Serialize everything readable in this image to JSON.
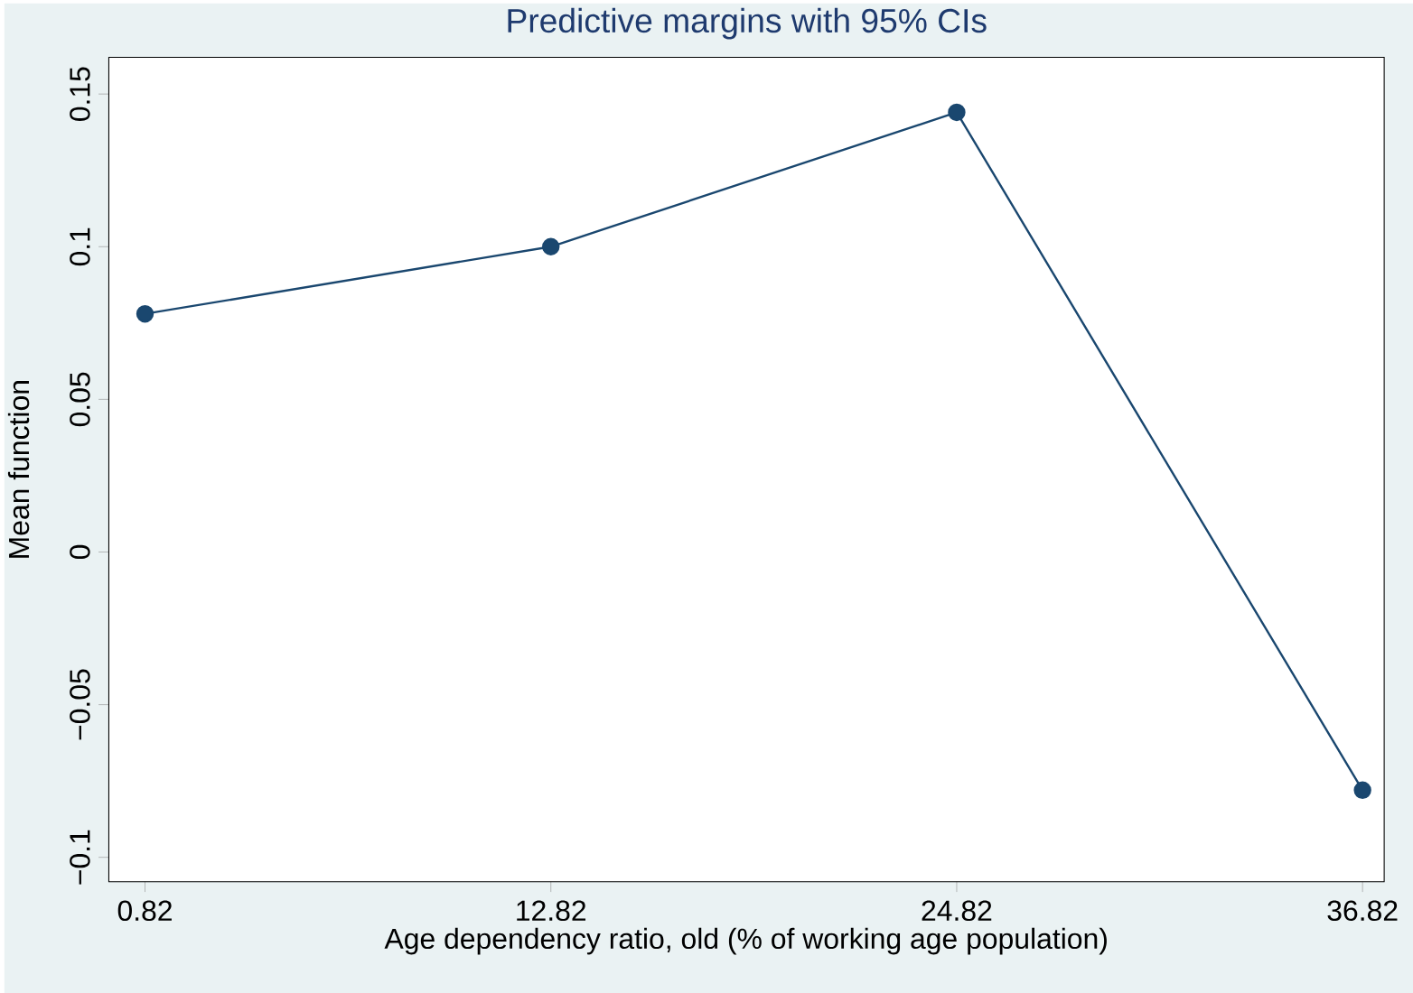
{
  "chart_data": {
    "type": "line",
    "title": "Predictive margins with 95% CIs",
    "xlabel": "Age dependency ratio, old (% of working age population)",
    "ylabel": "Mean function",
    "x": [
      0.82,
      12.82,
      24.82,
      36.82
    ],
    "series": [
      {
        "color": "#1a476f",
        "values": [
          0.078,
          0.1,
          0.144,
          -0.078
        ]
      }
    ],
    "xlim": [
      -0.25,
      37.46
    ],
    "ylim": [
      -0.108,
      0.162
    ],
    "xticks": [
      {
        "value": 0.82,
        "label": "0.82"
      },
      {
        "value": 12.82,
        "label": "12.82"
      },
      {
        "value": 24.82,
        "label": "24.82"
      },
      {
        "value": 36.82,
        "label": "36.82"
      }
    ],
    "yticks": [
      {
        "value": -0.1,
        "label": "−0.1"
      },
      {
        "value": -0.05,
        "label": "−0.05"
      },
      {
        "value": 0,
        "label": "0"
      },
      {
        "value": 0.05,
        "label": "0.05"
      },
      {
        "value": 0.1,
        "label": "0.1"
      },
      {
        "value": 0.15,
        "label": "0.15"
      }
    ],
    "marker": "circle",
    "line_style": "solid"
  }
}
